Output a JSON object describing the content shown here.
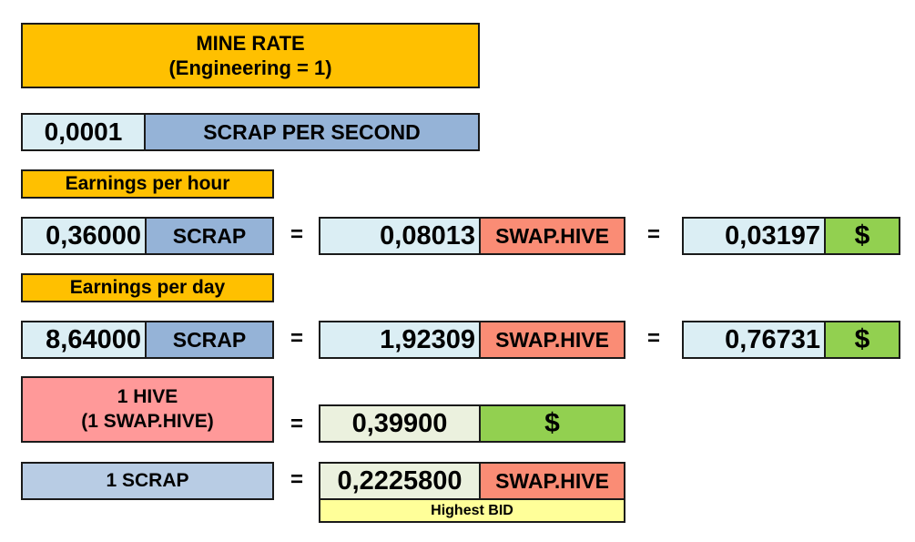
{
  "mine_rate": {
    "title": "MINE RATE",
    "subtitle": "(Engineering = 1)"
  },
  "rate": {
    "value": "0,0001",
    "unit": "SCRAP PER SECOND"
  },
  "hour": {
    "label": "Earnings per hour",
    "scrap_value": "0,36000",
    "scrap_unit": "SCRAP",
    "eq1": "=",
    "swap_value": "0,08013",
    "swap_unit": "SWAP.HIVE",
    "eq2": "=",
    "usd_value": "0,03197",
    "usd_unit": "$"
  },
  "day": {
    "label": "Earnings per day",
    "scrap_value": "8,64000",
    "scrap_unit": "SCRAP",
    "eq1": "=",
    "swap_value": "1,92309",
    "swap_unit": "SWAP.HIVE",
    "eq2": "=",
    "usd_value": "0,76731",
    "usd_unit": "$"
  },
  "hive": {
    "line1": "1 HIVE",
    "line2": "(1 SWAP.HIVE)",
    "eq": "=",
    "usd_value": "0,39900",
    "usd_unit": "$"
  },
  "scrap_price": {
    "label": "1 SCRAP",
    "eq": "=",
    "value": "0,2225800",
    "unit": "SWAP.HIVE",
    "note": "Highest BID"
  },
  "colors": {
    "yellow": "#ffc000",
    "light_blue": "#dbeef4",
    "blue": "#95b3d7",
    "salmon": "#fa8c75",
    "pink": "#ff9999",
    "green": "#92d050",
    "light_green": "#ebf1de",
    "pale_yellow": "#ffff99"
  }
}
